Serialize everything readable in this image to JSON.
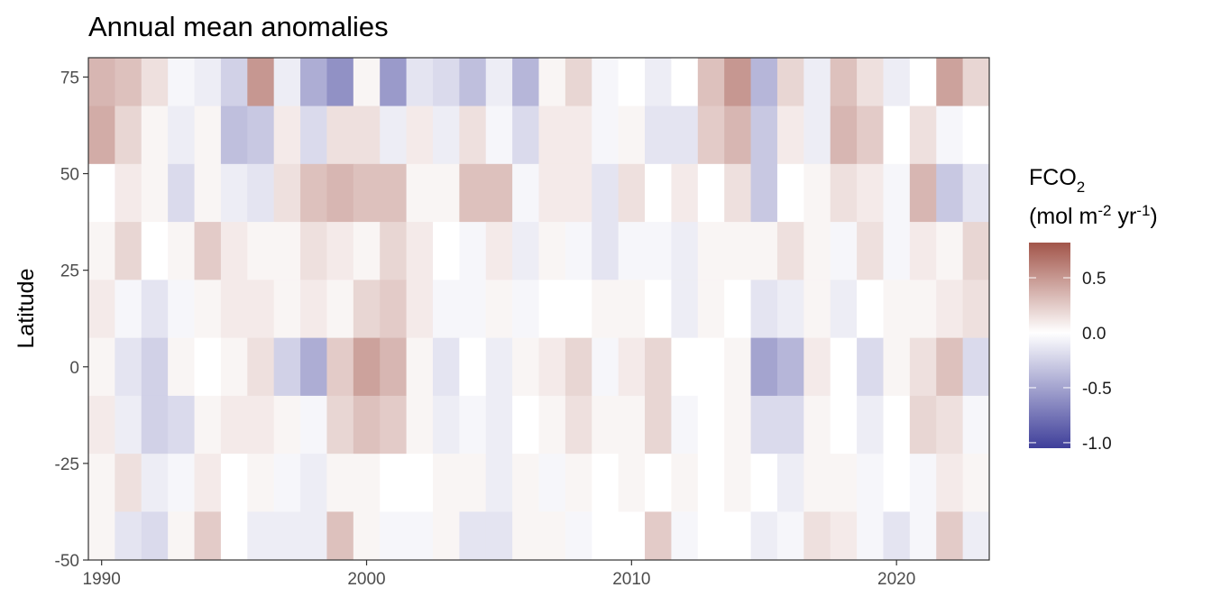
{
  "chart_data": {
    "type": "heatmap",
    "title": "Annual mean anomalies",
    "xlabel": "",
    "ylabel": "Latitude",
    "x_ticks": [
      1990,
      2000,
      2010,
      2020
    ],
    "y_ticks": [
      75,
      50,
      25,
      0,
      -25,
      -50
    ],
    "x_range": [
      1989.5,
      2023.5
    ],
    "y_range": [
      -50,
      80
    ],
    "years": [
      1990,
      1991,
      1992,
      1993,
      1994,
      1995,
      1996,
      1997,
      1998,
      1999,
      2000,
      2001,
      2002,
      2003,
      2004,
      2005,
      2006,
      2007,
      2008,
      2009,
      2010,
      2011,
      2012,
      2013,
      2014,
      2015,
      2016,
      2017,
      2018,
      2019,
      2020,
      2021,
      2022,
      2023
    ],
    "latitude_bands": [
      75,
      60,
      45,
      30,
      15,
      0,
      -15,
      -30,
      -45
    ],
    "band_labels_note_removed": true,
    "values": [
      [
        0.35,
        0.3,
        0.15,
        -0.05,
        -0.1,
        -0.25,
        0.5,
        -0.1,
        -0.45,
        -0.6,
        0.05,
        -0.55,
        -0.15,
        -0.2,
        -0.35,
        -0.1,
        -0.4,
        0.05,
        0.2,
        -0.05,
        0.0,
        -0.1,
        0.0,
        0.3,
        0.5,
        -0.4,
        0.2,
        -0.1,
        0.3,
        0.15,
        -0.1,
        0.0,
        0.45,
        0.2
      ],
      [
        0.4,
        0.2,
        0.05,
        -0.1,
        0.05,
        -0.35,
        -0.3,
        0.1,
        -0.2,
        0.15,
        0.15,
        -0.1,
        0.1,
        -0.1,
        0.15,
        -0.05,
        -0.2,
        0.1,
        0.1,
        -0.05,
        0.05,
        -0.15,
        -0.15,
        0.25,
        0.35,
        -0.3,
        0.1,
        -0.1,
        0.35,
        0.25,
        0.0,
        0.15,
        -0.05,
        0.0
      ],
      [
        0.0,
        0.1,
        0.05,
        -0.2,
        0.05,
        -0.1,
        -0.15,
        0.15,
        0.3,
        0.35,
        0.3,
        0.3,
        0.05,
        0.05,
        0.3,
        0.3,
        -0.05,
        0.1,
        0.1,
        -0.15,
        0.15,
        0.0,
        0.1,
        0.0,
        0.15,
        -0.3,
        0.0,
        0.05,
        0.15,
        0.1,
        -0.05,
        0.35,
        -0.3,
        -0.15
      ],
      [
        0.05,
        0.2,
        0.0,
        0.05,
        0.25,
        0.1,
        0.05,
        0.05,
        0.15,
        0.1,
        0.05,
        0.2,
        0.1,
        0.0,
        -0.05,
        0.1,
        -0.1,
        0.05,
        -0.05,
        -0.15,
        -0.05,
        -0.05,
        -0.1,
        0.05,
        0.05,
        0.05,
        0.15,
        0.05,
        -0.05,
        0.15,
        -0.05,
        0.1,
        0.05,
        0.2
      ],
      [
        0.1,
        -0.05,
        -0.15,
        -0.05,
        0.05,
        0.1,
        0.1,
        0.05,
        0.1,
        0.05,
        0.2,
        0.25,
        0.1,
        -0.05,
        -0.05,
        0.05,
        -0.05,
        0.0,
        0.0,
        0.05,
        0.05,
        0.0,
        -0.1,
        0.05,
        0.0,
        -0.15,
        -0.1,
        0.05,
        -0.1,
        0.0,
        0.05,
        0.05,
        0.1,
        0.15
      ],
      [
        0.05,
        -0.15,
        -0.25,
        0.05,
        0.0,
        0.05,
        0.15,
        -0.25,
        -0.45,
        0.25,
        0.45,
        0.35,
        0.05,
        -0.15,
        0.0,
        -0.1,
        0.05,
        0.1,
        0.2,
        -0.05,
        0.1,
        0.2,
        0.0,
        0.0,
        0.05,
        -0.5,
        -0.4,
        0.1,
        0.0,
        -0.2,
        0.05,
        0.15,
        0.3,
        -0.2
      ],
      [
        0.1,
        -0.1,
        -0.25,
        -0.2,
        0.05,
        0.1,
        0.1,
        0.05,
        -0.05,
        0.2,
        0.3,
        0.25,
        0.05,
        -0.1,
        -0.05,
        -0.1,
        0.0,
        0.05,
        0.15,
        0.05,
        0.05,
        0.2,
        -0.05,
        0.0,
        0.05,
        -0.2,
        -0.2,
        0.05,
        0.0,
        -0.1,
        0.0,
        0.2,
        0.15,
        -0.05
      ],
      [
        0.05,
        0.15,
        -0.1,
        -0.05,
        0.1,
        0.0,
        0.05,
        -0.05,
        -0.1,
        0.05,
        0.05,
        0.0,
        0.0,
        0.05,
        0.05,
        -0.1,
        0.05,
        -0.05,
        0.05,
        0.0,
        0.05,
        0.0,
        0.05,
        0.0,
        0.05,
        0.0,
        -0.1,
        0.05,
        0.05,
        -0.05,
        0.0,
        -0.05,
        0.1,
        0.05
      ],
      [
        0.05,
        -0.15,
        -0.2,
        0.05,
        0.25,
        0.0,
        -0.1,
        -0.1,
        -0.1,
        0.3,
        0.05,
        -0.05,
        -0.05,
        0.05,
        -0.15,
        -0.15,
        0.05,
        0.05,
        -0.05,
        0.0,
        0.0,
        0.25,
        -0.05,
        0.0,
        0.0,
        -0.1,
        -0.05,
        0.15,
        0.1,
        -0.05,
        -0.15,
        -0.05,
        0.25,
        -0.1
      ]
    ],
    "legend": {
      "title_main": "FCO",
      "title_sub": "2",
      "unit_parts": [
        "(mol m",
        "-2",
        " yr",
        "-1",
        ")"
      ],
      "ticks": [
        0.5,
        0.0,
        -0.5,
        -1.0
      ],
      "tick_labels": [
        "0.5",
        "0.0",
        "-0.5",
        "-1.0"
      ],
      "range": [
        -1.05,
        0.82
      ],
      "colors": {
        "low": "#3F3F9A",
        "mid": "#FFFFFF",
        "high": "#A2554A"
      }
    }
  }
}
